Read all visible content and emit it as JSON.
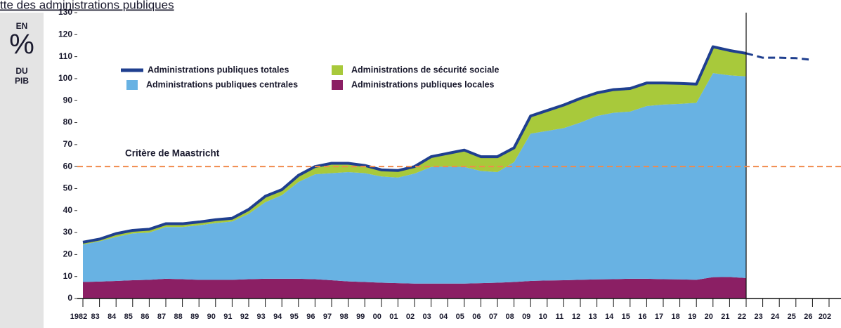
{
  "sidebar": [
    "EN",
    "%",
    "DU",
    "PIB"
  ],
  "chart_data": {
    "type": "stacked_area",
    "title": "tte des administrations publiques",
    "categories": [
      "1982",
      "83",
      "84",
      "85",
      "86",
      "87",
      "88",
      "89",
      "90",
      "91",
      "92",
      "93",
      "94",
      "95",
      "96",
      "97",
      "98",
      "99",
      "00",
      "01",
      "02",
      "03",
      "04",
      "05",
      "06",
      "07",
      "08",
      "09",
      "10",
      "11",
      "12",
      "13",
      "14",
      "15",
      "16",
      "17",
      "18",
      "19",
      "20",
      "21",
      "22",
      "23",
      "24",
      "25",
      "26",
      "202"
    ],
    "series": [
      {
        "name": "Administrations publiques locales",
        "color": "#8b1f64",
        "values": [
          7.5,
          7.7,
          8,
          8.3,
          8.5,
          9,
          8.8,
          8.5,
          8.5,
          8.5,
          8.8,
          9,
          9,
          9,
          8.8,
          8.3,
          7.8,
          7.5,
          7.2,
          7,
          6.8,
          6.8,
          6.8,
          6.8,
          7,
          7.2,
          7.5,
          8,
          8.2,
          8.3,
          8.5,
          8.7,
          8.8,
          9,
          9,
          8.8,
          8.7,
          8.5,
          9.7,
          9.8,
          9.3,
          null,
          null,
          null,
          null,
          null
        ]
      },
      {
        "name": "Administrations publiques centrales",
        "color": "#68b2e3",
        "values": [
          17,
          18.3,
          20,
          21.3,
          21.5,
          23.5,
          23.7,
          24.8,
          25.8,
          26.5,
          29.7,
          34.8,
          38,
          44,
          47.7,
          48.7,
          49.7,
          49.5,
          48.3,
          48,
          50,
          53,
          53.2,
          53,
          51,
          50.3,
          54.5,
          67,
          68,
          69.2,
          71.5,
          74.3,
          75.7,
          76,
          78.5,
          79.4,
          79.8,
          80.5,
          92.8,
          91.7,
          91.7,
          null,
          null,
          null,
          null,
          null
        ]
      },
      {
        "name": "Administrations de sécurité sociale",
        "color": "#a8c93b",
        "values": [
          1,
          1,
          1.2,
          1.2,
          1.2,
          1.2,
          1.2,
          1.2,
          1.2,
          1.2,
          1.7,
          2.5,
          2.3,
          2.8,
          3.3,
          4.3,
          3.8,
          3.3,
          2.8,
          3,
          3,
          4.5,
          5.8,
          7.5,
          6.3,
          6.8,
          6.3,
          7.8,
          9,
          10.3,
          10.5,
          10.3,
          10.3,
          10.3,
          10.3,
          9.6,
          9.1,
          8.3,
          11.8,
          11.1,
          10.3,
          null,
          null,
          null,
          null,
          null
        ]
      }
    ],
    "total": {
      "name": "Administrations publiques totales",
      "color": "#1f3f8f",
      "values": [
        25.6,
        27,
        29.5,
        31,
        31.5,
        34,
        34,
        34.8,
        35.8,
        36.5,
        40.5,
        46.5,
        49.5,
        56,
        60,
        61.5,
        61.5,
        60.5,
        58.5,
        58.2,
        60,
        64.5,
        66,
        67.5,
        64.5,
        64.5,
        68.5,
        83,
        85.5,
        88,
        91,
        93.5,
        95,
        95.5,
        98,
        98,
        97.8,
        97.5,
        114.5,
        112.8,
        111.5,
        109.5,
        109.5,
        109.3,
        108.5,
        null
      ]
    },
    "projection_start": "22",
    "reference_line": {
      "label": "Critère de Maastricht",
      "value": 60,
      "color": "#f08a4b"
    },
    "ylim": [
      0,
      130
    ],
    "yticks": [
      0,
      10,
      20,
      30,
      40,
      50,
      60,
      70,
      80,
      90,
      100,
      110,
      120,
      130
    ]
  }
}
